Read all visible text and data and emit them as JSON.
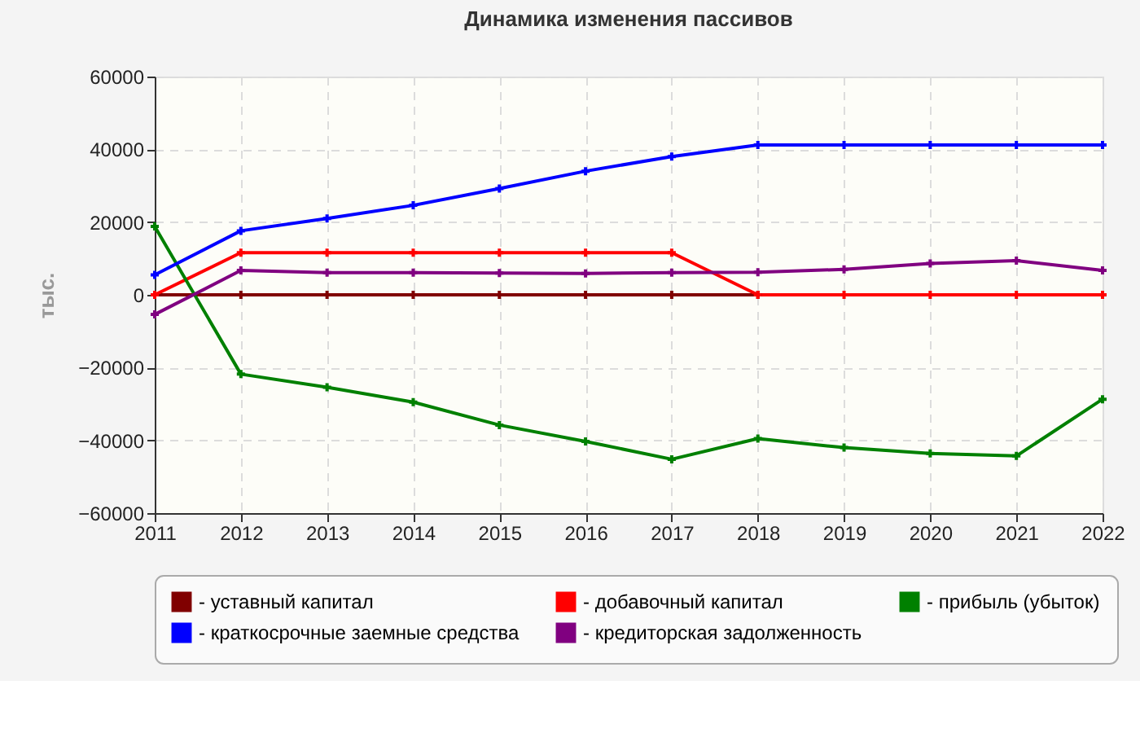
{
  "chart_data": {
    "type": "line",
    "title": "Динамика изменения пассивов",
    "ylabel": "тыс.",
    "x": [
      2011,
      2012,
      2013,
      2014,
      2015,
      2016,
      2017,
      2018,
      2019,
      2020,
      2021,
      2022
    ],
    "xlim": [
      2011,
      2022
    ],
    "xticks": [
      2011,
      2012,
      2013,
      2014,
      2015,
      2016,
      2017,
      2018,
      2019,
      2020,
      2021,
      2022
    ],
    "ylim": [
      -60000,
      60000
    ],
    "yticks": [
      -60000,
      -40000,
      -20000,
      0,
      20000,
      40000,
      60000
    ],
    "grid": true,
    "legend": "bottom",
    "marker": "cross",
    "line_style": "solid",
    "series": [
      {
        "name": "- уставный капитал",
        "color": "#800000",
        "values": [
          0,
          0,
          0,
          0,
          0,
          0,
          0,
          0,
          null,
          null,
          null,
          null
        ]
      },
      {
        "name": "- добавочный капитал",
        "color": "#ff0000",
        "values": [
          0,
          11600,
          11600,
          11600,
          11600,
          11600,
          11600,
          0,
          0,
          0,
          0,
          0
        ]
      },
      {
        "name": "- прибыль (убыток)",
        "color": "#008000",
        "values": [
          18800,
          -21800,
          -25400,
          -29500,
          -35800,
          -40300,
          -45200,
          -39500,
          -42000,
          -43600,
          -44300,
          -28700
        ]
      },
      {
        "name": "- краткосрочные заемные средства",
        "color": "#0000ff",
        "values": [
          5500,
          17600,
          21000,
          24600,
          29200,
          34000,
          38000,
          41200,
          41200,
          41200,
          41200,
          41200
        ]
      },
      {
        "name": "- кредиторская задолженность",
        "color": "#800080",
        "values": [
          -5400,
          6700,
          6100,
          6100,
          6000,
          5900,
          6100,
          6200,
          7000,
          8600,
          9400,
          6700
        ]
      }
    ]
  }
}
